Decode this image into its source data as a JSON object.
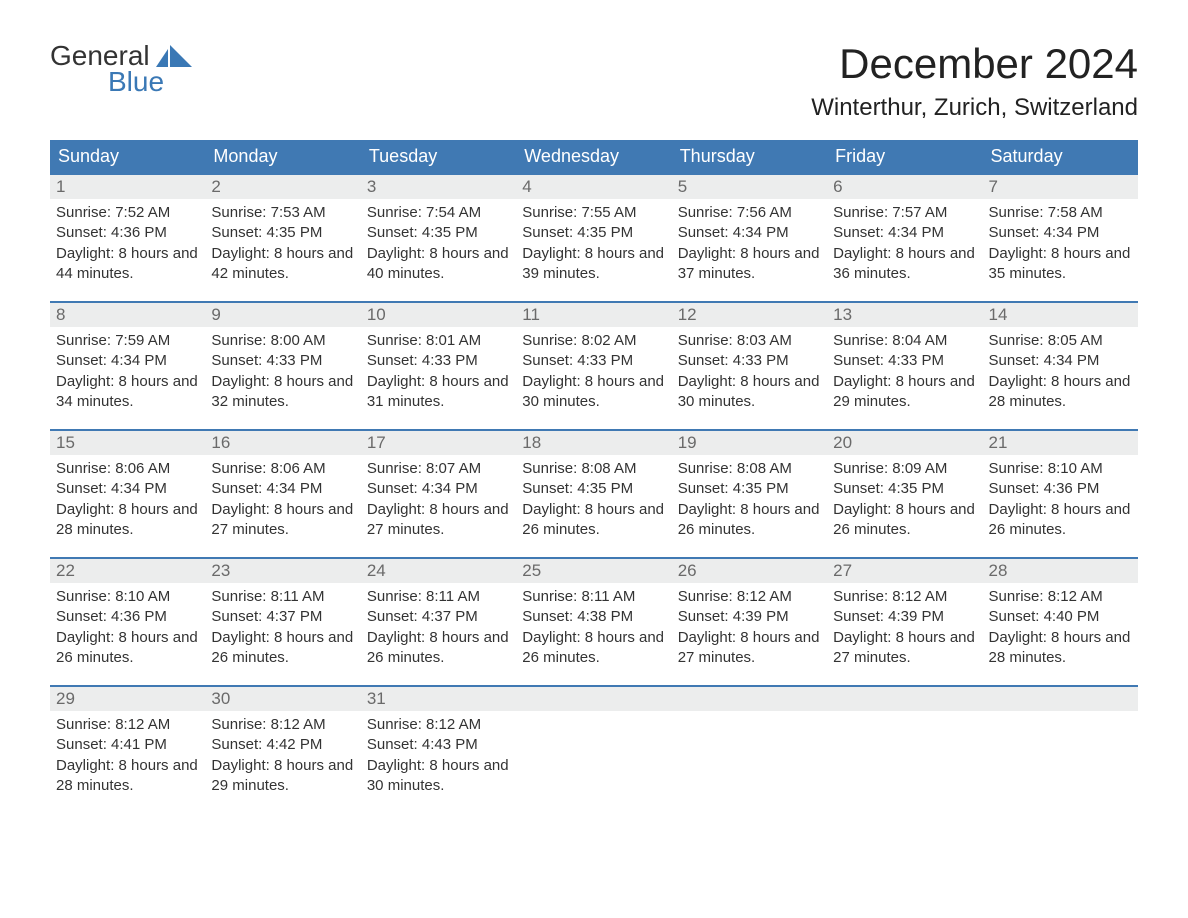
{
  "logo": {
    "word1": "General",
    "word2": "Blue",
    "sail_color": "#3a78b5"
  },
  "title": "December 2024",
  "location": "Winterthur, Zurich, Switzerland",
  "colors": {
    "header_bg": "#4079b3",
    "header_text": "#ffffff",
    "daynum_bg": "#eceded",
    "daynum_text": "#6a6a6a",
    "body_text": "#333333",
    "border": "#4079b3"
  },
  "typography": {
    "month_title_size_pt": 32,
    "location_size_pt": 18,
    "header_size_pt": 14,
    "body_size_pt": 11
  },
  "day_headers": [
    "Sunday",
    "Monday",
    "Tuesday",
    "Wednesday",
    "Thursday",
    "Friday",
    "Saturday"
  ],
  "labels": {
    "sunrise": "Sunrise:",
    "sunset": "Sunset:",
    "daylight": "Daylight:"
  },
  "weeks": [
    [
      {
        "n": "1",
        "sunrise": "7:52 AM",
        "sunset": "4:36 PM",
        "daylight": "8 hours and 44 minutes."
      },
      {
        "n": "2",
        "sunrise": "7:53 AM",
        "sunset": "4:35 PM",
        "daylight": "8 hours and 42 minutes."
      },
      {
        "n": "3",
        "sunrise": "7:54 AM",
        "sunset": "4:35 PM",
        "daylight": "8 hours and 40 minutes."
      },
      {
        "n": "4",
        "sunrise": "7:55 AM",
        "sunset": "4:35 PM",
        "daylight": "8 hours and 39 minutes."
      },
      {
        "n": "5",
        "sunrise": "7:56 AM",
        "sunset": "4:34 PM",
        "daylight": "8 hours and 37 minutes."
      },
      {
        "n": "6",
        "sunrise": "7:57 AM",
        "sunset": "4:34 PM",
        "daylight": "8 hours and 36 minutes."
      },
      {
        "n": "7",
        "sunrise": "7:58 AM",
        "sunset": "4:34 PM",
        "daylight": "8 hours and 35 minutes."
      }
    ],
    [
      {
        "n": "8",
        "sunrise": "7:59 AM",
        "sunset": "4:34 PM",
        "daylight": "8 hours and 34 minutes."
      },
      {
        "n": "9",
        "sunrise": "8:00 AM",
        "sunset": "4:33 PM",
        "daylight": "8 hours and 32 minutes."
      },
      {
        "n": "10",
        "sunrise": "8:01 AM",
        "sunset": "4:33 PM",
        "daylight": "8 hours and 31 minutes."
      },
      {
        "n": "11",
        "sunrise": "8:02 AM",
        "sunset": "4:33 PM",
        "daylight": "8 hours and 30 minutes."
      },
      {
        "n": "12",
        "sunrise": "8:03 AM",
        "sunset": "4:33 PM",
        "daylight": "8 hours and 30 minutes."
      },
      {
        "n": "13",
        "sunrise": "8:04 AM",
        "sunset": "4:33 PM",
        "daylight": "8 hours and 29 minutes."
      },
      {
        "n": "14",
        "sunrise": "8:05 AM",
        "sunset": "4:34 PM",
        "daylight": "8 hours and 28 minutes."
      }
    ],
    [
      {
        "n": "15",
        "sunrise": "8:06 AM",
        "sunset": "4:34 PM",
        "daylight": "8 hours and 28 minutes."
      },
      {
        "n": "16",
        "sunrise": "8:06 AM",
        "sunset": "4:34 PM",
        "daylight": "8 hours and 27 minutes."
      },
      {
        "n": "17",
        "sunrise": "8:07 AM",
        "sunset": "4:34 PM",
        "daylight": "8 hours and 27 minutes."
      },
      {
        "n": "18",
        "sunrise": "8:08 AM",
        "sunset": "4:35 PM",
        "daylight": "8 hours and 26 minutes."
      },
      {
        "n": "19",
        "sunrise": "8:08 AM",
        "sunset": "4:35 PM",
        "daylight": "8 hours and 26 minutes."
      },
      {
        "n": "20",
        "sunrise": "8:09 AM",
        "sunset": "4:35 PM",
        "daylight": "8 hours and 26 minutes."
      },
      {
        "n": "21",
        "sunrise": "8:10 AM",
        "sunset": "4:36 PM",
        "daylight": "8 hours and 26 minutes."
      }
    ],
    [
      {
        "n": "22",
        "sunrise": "8:10 AM",
        "sunset": "4:36 PM",
        "daylight": "8 hours and 26 minutes."
      },
      {
        "n": "23",
        "sunrise": "8:11 AM",
        "sunset": "4:37 PM",
        "daylight": "8 hours and 26 minutes."
      },
      {
        "n": "24",
        "sunrise": "8:11 AM",
        "sunset": "4:37 PM",
        "daylight": "8 hours and 26 minutes."
      },
      {
        "n": "25",
        "sunrise": "8:11 AM",
        "sunset": "4:38 PM",
        "daylight": "8 hours and 26 minutes."
      },
      {
        "n": "26",
        "sunrise": "8:12 AM",
        "sunset": "4:39 PM",
        "daylight": "8 hours and 27 minutes."
      },
      {
        "n": "27",
        "sunrise": "8:12 AM",
        "sunset": "4:39 PM",
        "daylight": "8 hours and 27 minutes."
      },
      {
        "n": "28",
        "sunrise": "8:12 AM",
        "sunset": "4:40 PM",
        "daylight": "8 hours and 28 minutes."
      }
    ],
    [
      {
        "n": "29",
        "sunrise": "8:12 AM",
        "sunset": "4:41 PM",
        "daylight": "8 hours and 28 minutes."
      },
      {
        "n": "30",
        "sunrise": "8:12 AM",
        "sunset": "4:42 PM",
        "daylight": "8 hours and 29 minutes."
      },
      {
        "n": "31",
        "sunrise": "8:12 AM",
        "sunset": "4:43 PM",
        "daylight": "8 hours and 30 minutes."
      },
      null,
      null,
      null,
      null
    ]
  ]
}
